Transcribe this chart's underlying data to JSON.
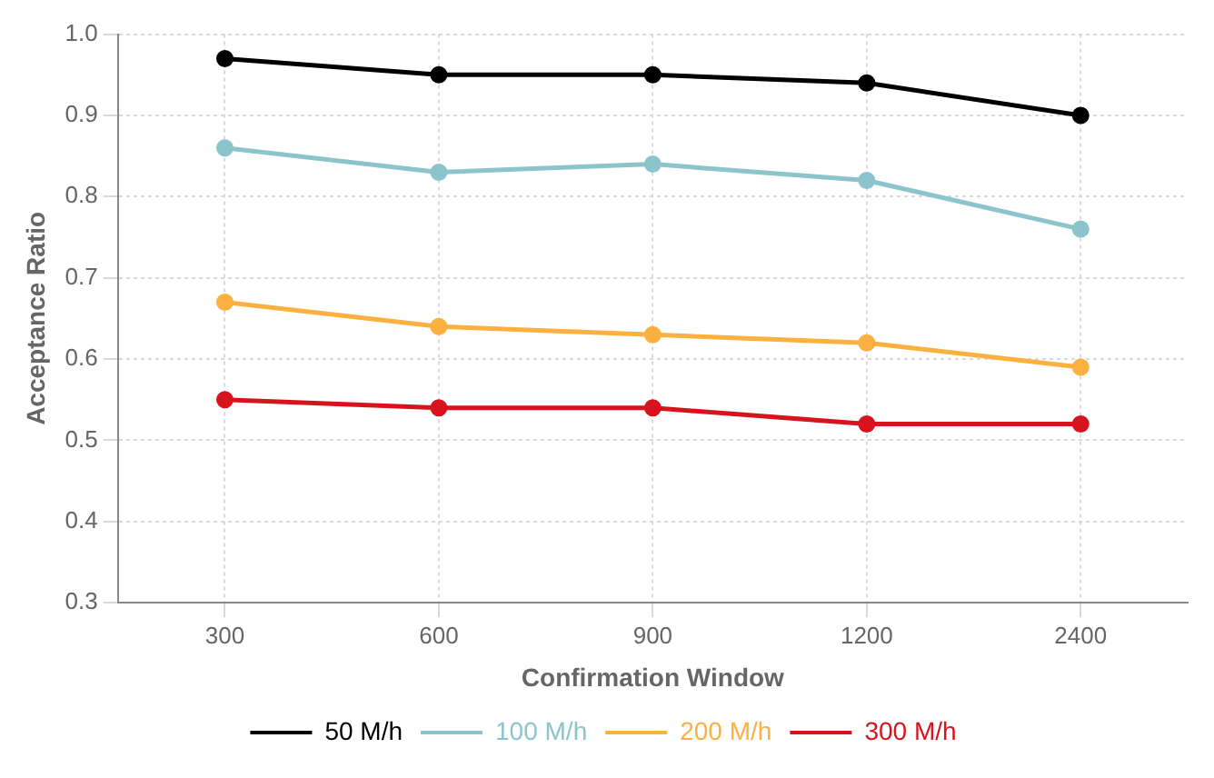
{
  "chart_data": {
    "type": "line",
    "xlabel": "Confirmation Window",
    "ylabel": "Acceptance Ratio",
    "categories": [
      "300",
      "600",
      "900",
      "1200",
      "2400"
    ],
    "series": [
      {
        "name": "50 M/h",
        "color": "#000000",
        "values": [
          0.97,
          0.95,
          0.95,
          0.94,
          0.9
        ]
      },
      {
        "name": "100 M/h",
        "color": "#8cc4cc",
        "values": [
          0.86,
          0.83,
          0.84,
          0.82,
          0.76
        ]
      },
      {
        "name": "200 M/h",
        "color": "#fbb040",
        "values": [
          0.67,
          0.64,
          0.63,
          0.62,
          0.59
        ]
      },
      {
        "name": "300 M/h",
        "color": "#d7141e",
        "values": [
          0.55,
          0.54,
          0.54,
          0.52,
          0.52
        ]
      }
    ],
    "ylim": [
      0.3,
      1.0
    ],
    "yticks": [
      0.3,
      0.4,
      0.5,
      0.6,
      0.7,
      0.8,
      0.9,
      {
        "value": 1,
        "label": "1.0"
      }
    ],
    "grid": true,
    "legend": "bottom",
    "marker": "circle",
    "line_style": "solid"
  }
}
